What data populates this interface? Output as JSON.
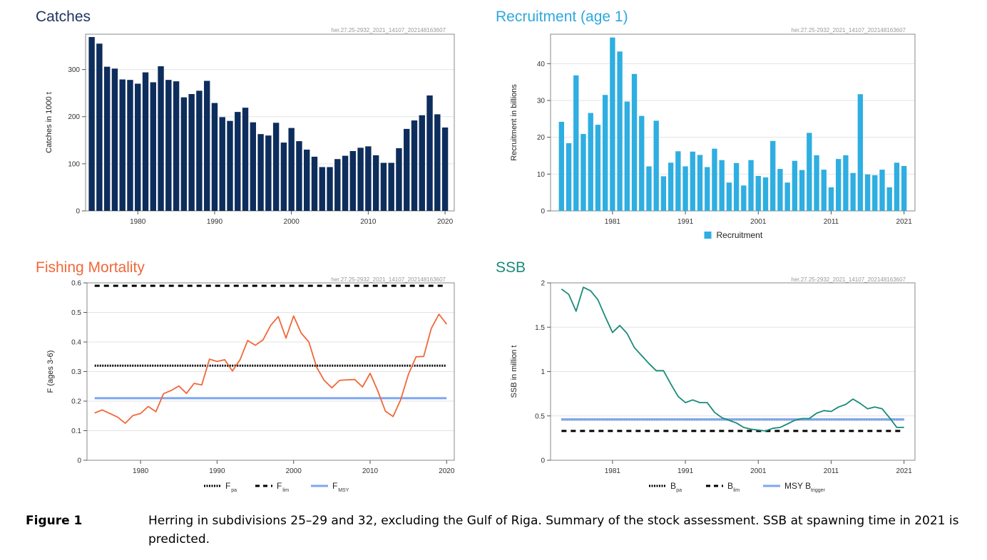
{
  "stamp": "her.27.25-2932_2021_14107_202148163607",
  "caption": {
    "label": "Figure 1",
    "text": "Herring in subdivisions 25–29 and 32, excluding the Gulf of Riga. Summary of the stock assessment. SSB at spawning time in 2021 is predicted."
  },
  "chart_data": [
    {
      "id": "catches",
      "type": "bar",
      "title": "Catches",
      "title_color": "#1e3560",
      "color": "#0d2d5c",
      "ylabel": "Catches in 1000 t",
      "xlabel": "",
      "ylim": [
        0,
        375
      ],
      "xlim": [
        1973.2,
        2021.2
      ],
      "yticks": [
        0,
        100,
        200,
        300
      ],
      "xticks": [
        1980,
        1990,
        2000,
        2010,
        2020
      ],
      "grid": true,
      "x": [
        1974,
        1975,
        1976,
        1977,
        1978,
        1979,
        1980,
        1981,
        1982,
        1983,
        1984,
        1985,
        1986,
        1987,
        1988,
        1989,
        1990,
        1991,
        1992,
        1993,
        1994,
        1995,
        1996,
        1997,
        1998,
        1999,
        2000,
        2001,
        2002,
        2003,
        2004,
        2005,
        2006,
        2007,
        2008,
        2009,
        2010,
        2011,
        2012,
        2013,
        2014,
        2015,
        2016,
        2017,
        2018,
        2019,
        2020
      ],
      "values": [
        369,
        355,
        306,
        302,
        279,
        278,
        270,
        294,
        273,
        307,
        278,
        275,
        241,
        248,
        255,
        276,
        229,
        199,
        191,
        210,
        219,
        188,
        163,
        160,
        187,
        145,
        176,
        148,
        130,
        115,
        93,
        93,
        110,
        117,
        127,
        134,
        137,
        118,
        102,
        102,
        133,
        174,
        192,
        203,
        245,
        205,
        177
      ]
    },
    {
      "id": "recruitment",
      "type": "bar",
      "title": "Recruitment (age 1)",
      "title_color": "#2ea8de",
      "color": "#2eaee1",
      "ylabel": "Recruitment in billions",
      "xlabel": "",
      "ylim": [
        0,
        48
      ],
      "xlim": [
        1972.5,
        2022.5
      ],
      "yticks": [
        0,
        10,
        20,
        30,
        40
      ],
      "xticks": [
        1981,
        1991,
        2001,
        2011,
        2021
      ],
      "grid": true,
      "legend": [
        "Recruitment"
      ],
      "legend_position": "bottom",
      "x": [
        1974,
        1975,
        1976,
        1977,
        1978,
        1979,
        1980,
        1981,
        1982,
        1983,
        1984,
        1985,
        1986,
        1987,
        1988,
        1989,
        1990,
        1991,
        1992,
        1993,
        1994,
        1995,
        1996,
        1997,
        1998,
        1999,
        2000,
        2001,
        2002,
        2003,
        2004,
        2005,
        2006,
        2007,
        2008,
        2009,
        2010,
        2011,
        2012,
        2013,
        2014,
        2015,
        2016,
        2017,
        2018,
        2019,
        2020,
        2021
      ],
      "values": [
        24.2,
        18.4,
        36.8,
        20.9,
        26.6,
        23.4,
        31.5,
        47.1,
        43.3,
        29.7,
        37.2,
        25.8,
        12.1,
        24.5,
        9.4,
        13.1,
        16.2,
        12.1,
        16.1,
        15.2,
        11.9,
        16.9,
        13.8,
        7.7,
        13,
        6.9,
        13.8,
        9.5,
        9.1,
        19,
        11.4,
        7.7,
        13.6,
        11.1,
        21.2,
        15.1,
        11.2,
        6.4,
        14.1,
        15.1,
        10.3,
        31.7,
        9.9,
        9.7,
        11.2,
        6.4,
        13.1,
        12.2
      ]
    },
    {
      "id": "fishing-mortality",
      "type": "line",
      "title": "Fishing Mortality",
      "title_color": "#f0683a",
      "color": "#f0683a",
      "ylabel": "F (ages 3-6)",
      "xlabel": "",
      "ylim": [
        0,
        0.6
      ],
      "xlim": [
        1973,
        2021
      ],
      "yticks": [
        0,
        0.1,
        0.2,
        0.3,
        0.4,
        0.5,
        0.6
      ],
      "ytick_labels": [
        "0",
        "0.1",
        "0.2",
        "0.3",
        "0.4",
        "0.5",
        "0.6"
      ],
      "xticks": [
        1980,
        1990,
        2000,
        2010,
        2020
      ],
      "grid": true,
      "legend_position": "bottom",
      "x": [
        1974,
        1975,
        1976,
        1977,
        1978,
        1979,
        1980,
        1981,
        1982,
        1983,
        1984,
        1985,
        1986,
        1987,
        1988,
        1989,
        1990,
        1991,
        1992,
        1993,
        1994,
        1995,
        1996,
        1997,
        1998,
        1999,
        2000,
        2001,
        2002,
        2003,
        2004,
        2005,
        2006,
        2007,
        2008,
        2009,
        2010,
        2011,
        2012,
        2013,
        2014,
        2015,
        2016,
        2017,
        2018,
        2019,
        2020
      ],
      "values": [
        0.16,
        0.17,
        0.158,
        0.146,
        0.125,
        0.151,
        0.158,
        0.182,
        0.164,
        0.225,
        0.236,
        0.251,
        0.226,
        0.26,
        0.255,
        0.342,
        0.334,
        0.34,
        0.302,
        0.34,
        0.405,
        0.389,
        0.407,
        0.456,
        0.486,
        0.413,
        0.488,
        0.43,
        0.4,
        0.315,
        0.27,
        0.245,
        0.27,
        0.272,
        0.273,
        0.248,
        0.294,
        0.235,
        0.166,
        0.148,
        0.205,
        0.29,
        0.35,
        0.351,
        0.446,
        0.494,
        0.46
      ],
      "reference_lines": [
        {
          "name": "F",
          "sub": "pa",
          "value": 0.32,
          "color": "#000000",
          "style": "dotted"
        },
        {
          "name": "F",
          "sub": "lim",
          "value": 0.59,
          "color": "#000000",
          "style": "dashed"
        },
        {
          "name": "F",
          "sub": "MSY",
          "value": 0.21,
          "color": "#7ea6f0",
          "style": "solid"
        }
      ]
    },
    {
      "id": "ssb",
      "type": "line",
      "title": "SSB",
      "title_color": "#198a7a",
      "color": "#198a7a",
      "ylabel": "SSB in million t",
      "xlabel": "",
      "ylim": [
        0,
        2.0
      ],
      "xlim": [
        1972.5,
        2022.5
      ],
      "yticks": [
        0,
        0.5,
        1,
        1.5,
        2
      ],
      "ytick_labels": [
        "0",
        "0.5",
        "1",
        "1.5",
        "2"
      ],
      "xticks": [
        1981,
        1991,
        2001,
        2011,
        2021
      ],
      "grid": true,
      "legend_position": "bottom",
      "x": [
        1974,
        1975,
        1976,
        1977,
        1978,
        1979,
        1980,
        1981,
        1982,
        1983,
        1984,
        1985,
        1986,
        1987,
        1988,
        1989,
        1990,
        1991,
        1992,
        1993,
        1994,
        1995,
        1996,
        1997,
        1998,
        1999,
        2000,
        2001,
        2002,
        2003,
        2004,
        2005,
        2006,
        2007,
        2008,
        2009,
        2010,
        2011,
        2012,
        2013,
        2014,
        2015,
        2016,
        2017,
        2018,
        2019,
        2020,
        2021
      ],
      "values": [
        1.93,
        1.87,
        1.68,
        1.95,
        1.91,
        1.81,
        1.62,
        1.44,
        1.52,
        1.43,
        1.27,
        1.18,
        1.09,
        1.01,
        1.01,
        0.86,
        0.72,
        0.65,
        0.68,
        0.65,
        0.65,
        0.54,
        0.48,
        0.45,
        0.42,
        0.37,
        0.35,
        0.34,
        0.33,
        0.36,
        0.37,
        0.41,
        0.45,
        0.47,
        0.47,
        0.53,
        0.56,
        0.55,
        0.6,
        0.63,
        0.69,
        0.64,
        0.58,
        0.6,
        0.58,
        0.48,
        0.37,
        0.37
      ],
      "reference_lines": [
        {
          "name": "B",
          "sub": "pa",
          "value": 0.46,
          "color": "#000000",
          "style": "dotted"
        },
        {
          "name": "B",
          "sub": "lim",
          "value": 0.33,
          "color": "#000000",
          "style": "dashed"
        },
        {
          "name": "MSY B",
          "sub": "trigger",
          "value": 0.46,
          "color": "#7ea6f0",
          "style": "solid"
        }
      ]
    }
  ]
}
